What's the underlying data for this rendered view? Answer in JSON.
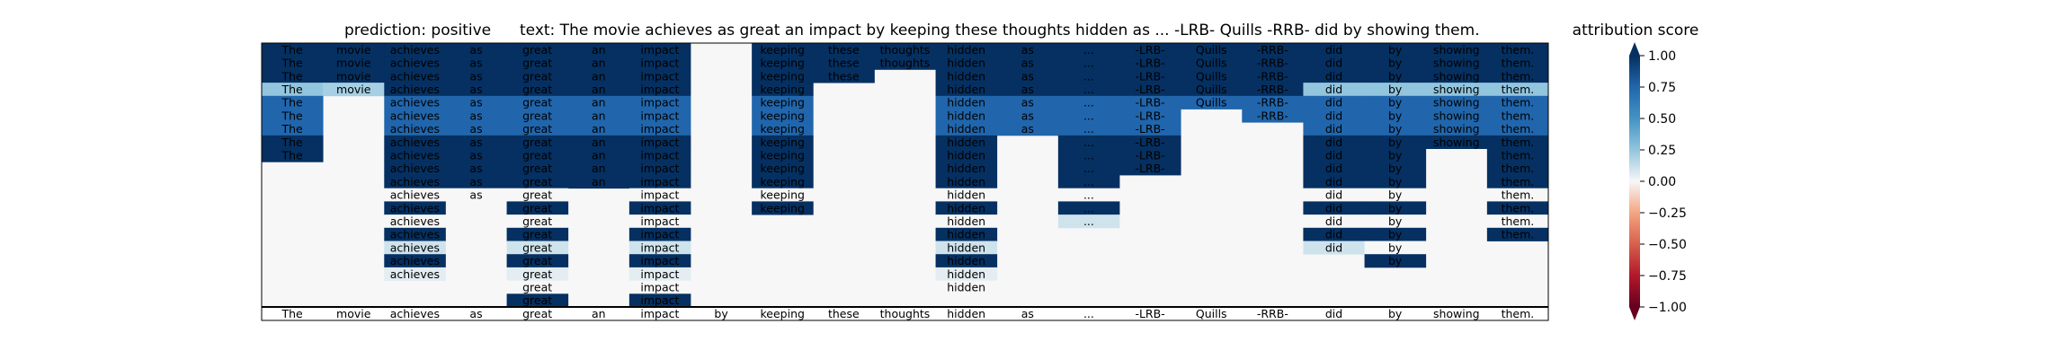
{
  "chart_data": {
    "type": "heatmap",
    "title_prediction": "prediction:  positive",
    "title_text": "text:  The movie achieves as great an impact by keeping these thoughts hidden as ... -LRB- Quills -RRB- did by showing them.",
    "colorbar_label": "attribution score",
    "colorbar_ticks": [
      "1.00",
      "0.75",
      "0.50",
      "0.25",
      "0.00",
      "−0.25",
      "−0.50",
      "−0.75",
      "−1.00"
    ],
    "colorbar_range": [
      -1,
      1
    ],
    "tokens": [
      "The",
      "movie",
      "achieves",
      "as",
      "great",
      "an",
      "impact",
      "by",
      "keeping",
      "these",
      "thoughts",
      "hidden",
      "as",
      "...",
      "-LRB-",
      "Quills",
      "-RRB-",
      "did",
      "by",
      "showing",
      "them."
    ],
    "rows": [
      [
        1.0,
        1.0,
        1.0,
        1.0,
        1.0,
        1.0,
        1.0,
        null,
        1.0,
        1.0,
        1.0,
        1.0,
        1.0,
        1.0,
        1.0,
        1.0,
        1.0,
        1.0,
        1.0,
        1.0,
        1.0
      ],
      [
        1.0,
        1.0,
        1.0,
        1.0,
        1.0,
        1.0,
        1.0,
        null,
        1.0,
        1.0,
        1.0,
        1.0,
        1.0,
        1.0,
        1.0,
        1.0,
        1.0,
        1.0,
        1.0,
        1.0,
        1.0
      ],
      [
        1.0,
        1.0,
        1.0,
        1.0,
        1.0,
        1.0,
        1.0,
        null,
        1.0,
        1.0,
        null,
        1.0,
        1.0,
        1.0,
        1.0,
        1.0,
        1.0,
        1.0,
        1.0,
        1.0,
        1.0
      ],
      [
        0.25,
        0.2,
        1.0,
        1.0,
        1.0,
        1.0,
        1.0,
        null,
        1.0,
        null,
        null,
        1.0,
        1.0,
        1.0,
        1.0,
        1.0,
        1.0,
        0.25,
        0.25,
        0.25,
        0.25
      ],
      [
        0.75,
        null,
        0.75,
        0.75,
        0.75,
        0.75,
        0.75,
        null,
        0.75,
        null,
        null,
        0.75,
        0.75,
        0.75,
        0.75,
        0.75,
        0.75,
        0.75,
        0.75,
        0.75,
        0.75
      ],
      [
        0.75,
        null,
        0.75,
        0.75,
        0.75,
        0.75,
        0.75,
        null,
        0.75,
        null,
        null,
        0.75,
        0.75,
        0.75,
        0.75,
        null,
        0.75,
        0.75,
        0.75,
        0.75,
        0.75
      ],
      [
        0.75,
        null,
        0.75,
        0.75,
        0.75,
        0.75,
        0.75,
        null,
        0.75,
        null,
        null,
        0.75,
        0.75,
        0.75,
        0.75,
        null,
        null,
        0.75,
        0.75,
        0.75,
        0.75
      ],
      [
        1.0,
        null,
        1.0,
        1.0,
        1.0,
        1.0,
        1.0,
        null,
        1.0,
        null,
        null,
        1.0,
        null,
        1.0,
        1.0,
        null,
        null,
        1.0,
        1.0,
        1.0,
        1.0
      ],
      [
        1.0,
        null,
        1.0,
        1.0,
        1.0,
        1.0,
        1.0,
        null,
        1.0,
        null,
        null,
        1.0,
        null,
        1.0,
        1.0,
        null,
        null,
        1.0,
        1.0,
        null,
        1.0
      ],
      [
        null,
        null,
        1.0,
        1.0,
        1.0,
        1.0,
        1.0,
        null,
        1.0,
        null,
        null,
        1.0,
        null,
        1.0,
        1.0,
        null,
        null,
        1.0,
        1.0,
        null,
        1.0
      ],
      [
        null,
        null,
        1.0,
        1.0,
        1.0,
        1.0,
        1.0,
        null,
        1.0,
        null,
        null,
        1.0,
        null,
        1.0,
        null,
        null,
        null,
        1.0,
        1.0,
        null,
        1.0
      ],
      [
        null,
        null,
        0.0,
        0.0,
        0.0,
        null,
        0.0,
        null,
        0.0,
        null,
        null,
        0.0,
        null,
        0.0,
        null,
        null,
        null,
        0.0,
        0.0,
        null,
        0.0
      ],
      [
        null,
        null,
        1.0,
        null,
        1.0,
        null,
        1.0,
        null,
        1.0,
        null,
        null,
        1.0,
        null,
        1.0,
        null,
        null,
        null,
        1.0,
        1.0,
        null,
        1.0
      ],
      [
        null,
        null,
        0.0,
        null,
        0.0,
        null,
        0.0,
        null,
        null,
        null,
        null,
        0.0,
        null,
        0.1,
        null,
        null,
        null,
        0.0,
        0.0,
        null,
        0.0
      ],
      [
        null,
        null,
        1.0,
        null,
        1.0,
        null,
        1.0,
        null,
        null,
        null,
        null,
        1.0,
        null,
        null,
        null,
        null,
        null,
        1.0,
        1.0,
        null,
        1.0
      ],
      [
        null,
        null,
        0.1,
        null,
        0.1,
        null,
        0.1,
        null,
        null,
        null,
        null,
        0.1,
        null,
        null,
        null,
        null,
        null,
        0.1,
        0.0,
        null,
        null
      ],
      [
        null,
        null,
        1.0,
        null,
        1.0,
        null,
        1.0,
        null,
        null,
        null,
        null,
        1.0,
        null,
        null,
        null,
        null,
        null,
        null,
        1.0,
        null,
        null
      ],
      [
        null,
        null,
        0.05,
        null,
        0.05,
        null,
        0.05,
        null,
        null,
        null,
        null,
        0.05,
        null,
        null,
        null,
        null,
        null,
        null,
        null,
        null,
        null
      ],
      [
        null,
        null,
        null,
        null,
        0.0,
        null,
        0.0,
        null,
        null,
        null,
        null,
        0.0,
        null,
        null,
        null,
        null,
        null,
        null,
        null,
        null,
        null
      ],
      [
        null,
        null,
        null,
        null,
        1.0,
        null,
        1.0,
        null,
        null,
        null,
        null,
        null,
        null,
        null,
        null,
        null,
        null,
        null,
        null,
        null,
        null
      ]
    ]
  }
}
